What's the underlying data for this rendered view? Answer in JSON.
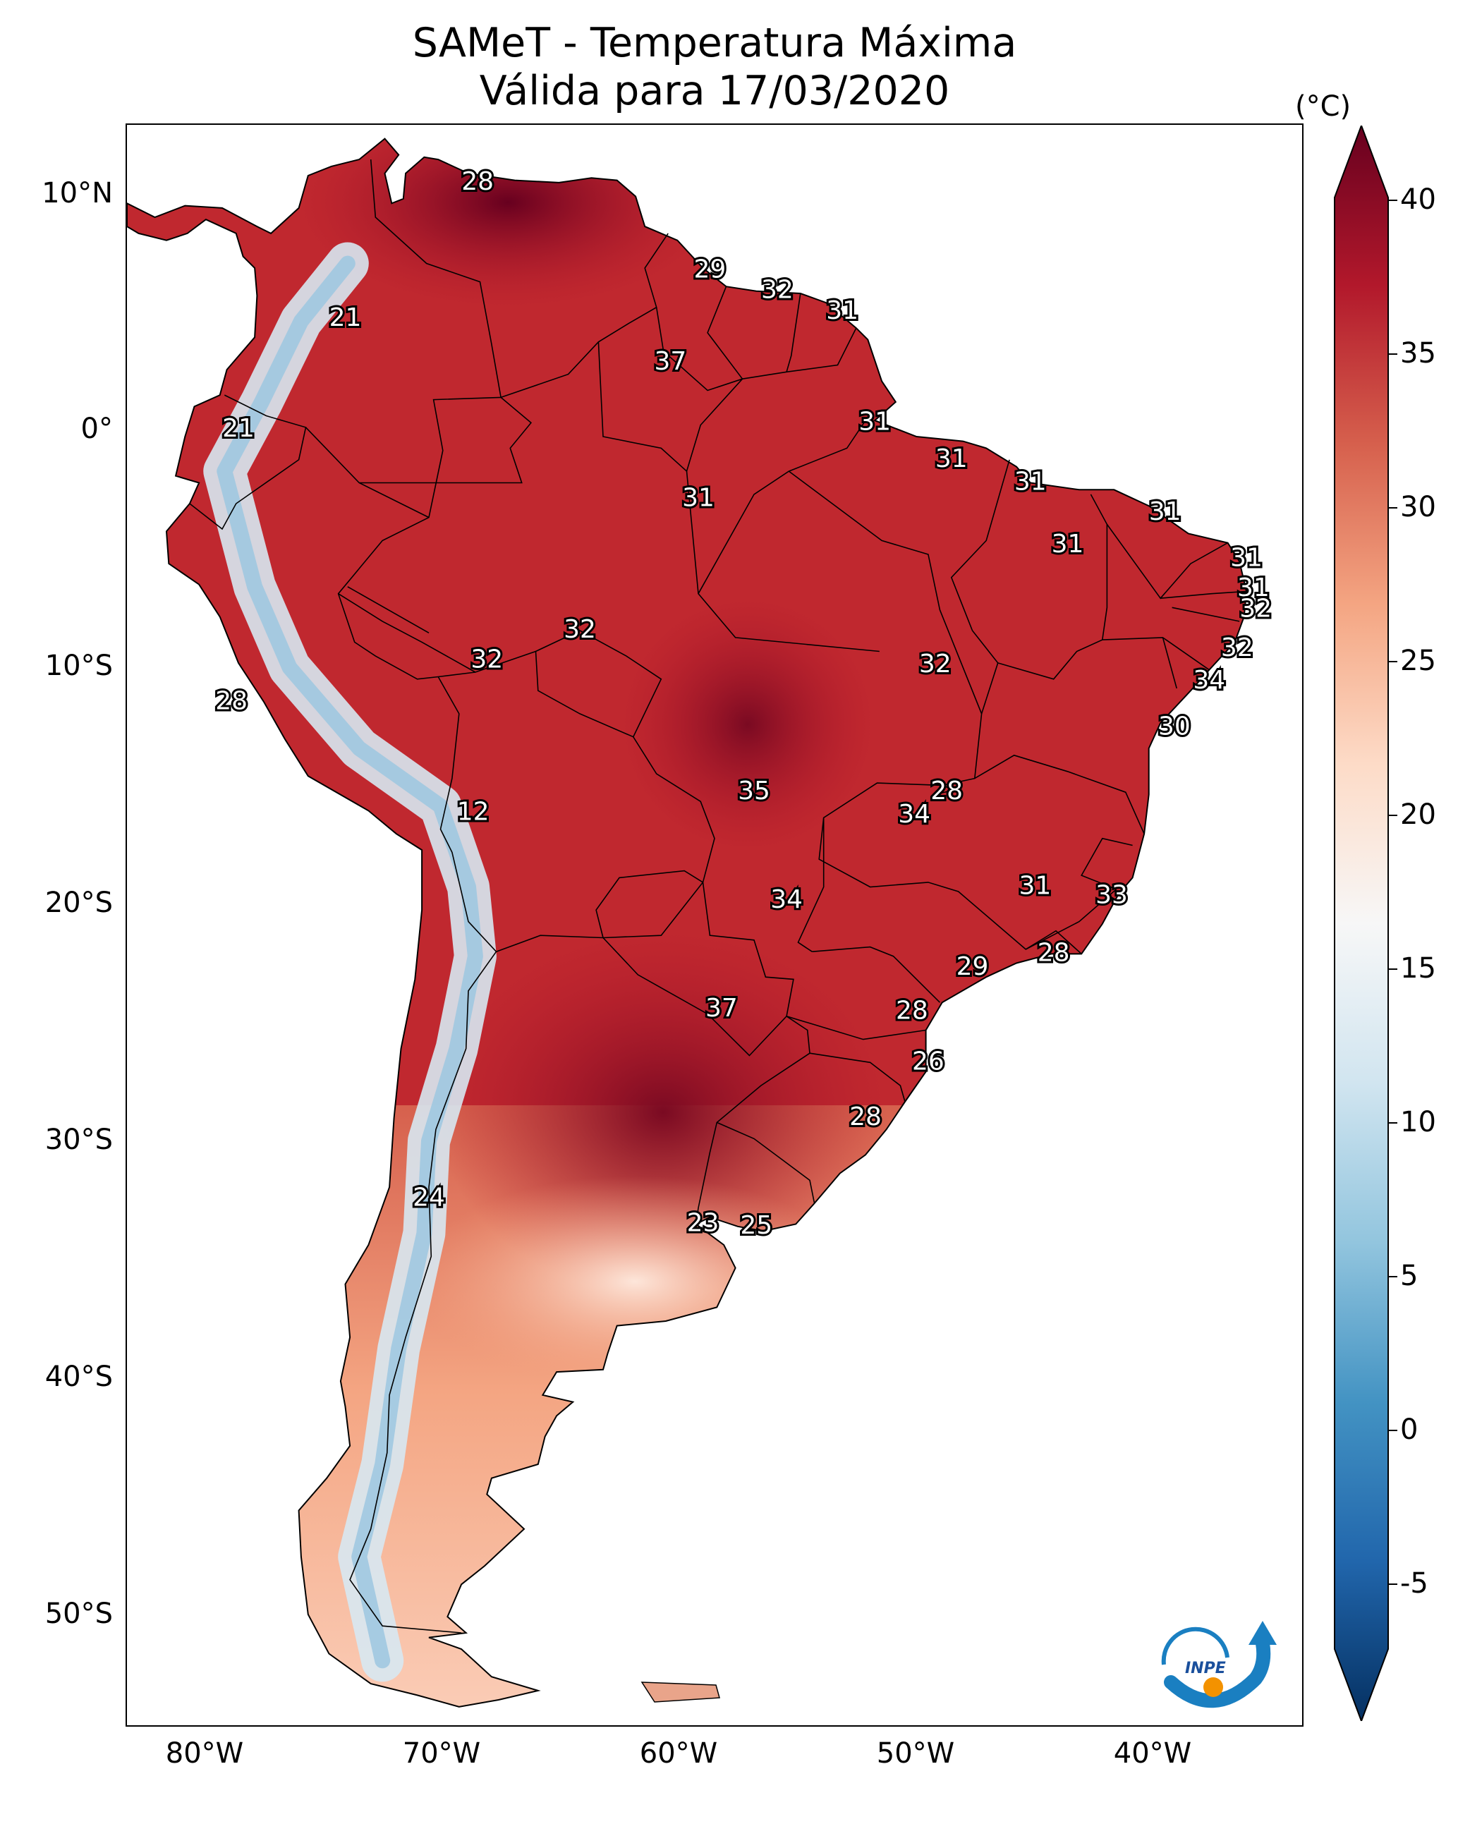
{
  "title": {
    "line1": "SAMeT - Temperatura Máxima",
    "line2": "Válida para 17/03/2020"
  },
  "colorbar": {
    "unit": "(°C)",
    "min": -7,
    "max": 42,
    "ticks": [
      "40",
      "35",
      "30",
      "25",
      "20",
      "15",
      "10",
      "5",
      "0",
      "-5"
    ],
    "colors": [
      "#053061",
      "#2166ac",
      "#4393c3",
      "#92c5de",
      "#d1e5f0",
      "#f7f7f7",
      "#fddbc7",
      "#f4a582",
      "#d6604d",
      "#b2182b",
      "#67001f"
    ]
  },
  "axes": {
    "lat_labels": [
      "10°N",
      "0°",
      "10°S",
      "20°S",
      "30°S",
      "40°S",
      "50°S"
    ],
    "lon_labels": [
      "80°W",
      "70°W",
      "60°W",
      "50°W",
      "40°W"
    ]
  },
  "map_labels": [
    {
      "text": "28",
      "lon": -67.9,
      "lat": 10.5
    },
    {
      "text": "29",
      "lon": -57.9,
      "lat": 6.7
    },
    {
      "text": "32",
      "lon": -55.0,
      "lat": 5.8
    },
    {
      "text": "31",
      "lon": -52.2,
      "lat": 4.9
    },
    {
      "text": "21",
      "lon": -73.6,
      "lat": 4.6
    },
    {
      "text": "37",
      "lon": -59.6,
      "lat": 2.7
    },
    {
      "text": "21",
      "lon": -78.2,
      "lat": -0.2
    },
    {
      "text": "31",
      "lon": -50.8,
      "lat": 0.1
    },
    {
      "text": "31",
      "lon": -47.5,
      "lat": -1.5
    },
    {
      "text": "31",
      "lon": -44.1,
      "lat": -2.5
    },
    {
      "text": "31",
      "lon": -58.4,
      "lat": -3.2
    },
    {
      "text": "31",
      "lon": -38.3,
      "lat": -3.8
    },
    {
      "text": "31",
      "lon": -42.5,
      "lat": -5.2
    },
    {
      "text": "31",
      "lon": -34.8,
      "lat": -5.8
    },
    {
      "text": "31",
      "lon": -34.5,
      "lat": -7.1
    },
    {
      "text": "32",
      "lon": -34.4,
      "lat": -8.0
    },
    {
      "text": "32",
      "lon": -63.5,
      "lat": -8.9
    },
    {
      "text": "32",
      "lon": -35.2,
      "lat": -9.7
    },
    {
      "text": "32",
      "lon": -67.5,
      "lat": -10.2
    },
    {
      "text": "32",
      "lon": -48.2,
      "lat": -10.4
    },
    {
      "text": "34",
      "lon": -36.4,
      "lat": -11.1
    },
    {
      "text": "28",
      "lon": -78.5,
      "lat": -12.0
    },
    {
      "text": "30",
      "lon": -37.9,
      "lat": -13.1
    },
    {
      "text": "35",
      "lon": -56.0,
      "lat": -15.9
    },
    {
      "text": "28",
      "lon": -47.7,
      "lat": -15.9
    },
    {
      "text": "34",
      "lon": -49.1,
      "lat": -16.9
    },
    {
      "text": "12",
      "lon": -68.1,
      "lat": -16.8
    },
    {
      "text": "31",
      "lon": -43.9,
      "lat": -20.0
    },
    {
      "text": "33",
      "lon": -40.6,
      "lat": -20.4
    },
    {
      "text": "34",
      "lon": -54.6,
      "lat": -20.6
    },
    {
      "text": "28",
      "lon": -43.1,
      "lat": -22.9
    },
    {
      "text": "29",
      "lon": -46.6,
      "lat": -23.5
    },
    {
      "text": "37",
      "lon": -57.4,
      "lat": -25.3
    },
    {
      "text": "28",
      "lon": -49.2,
      "lat": -25.4
    },
    {
      "text": "26",
      "lon": -48.5,
      "lat": -27.6
    },
    {
      "text": "28",
      "lon": -51.2,
      "lat": -30.0
    },
    {
      "text": "24",
      "lon": -70.0,
      "lat": -33.5
    },
    {
      "text": "23",
      "lon": -58.2,
      "lat": -34.6
    },
    {
      "text": "25",
      "lon": -55.9,
      "lat": -34.7
    }
  ]
}
